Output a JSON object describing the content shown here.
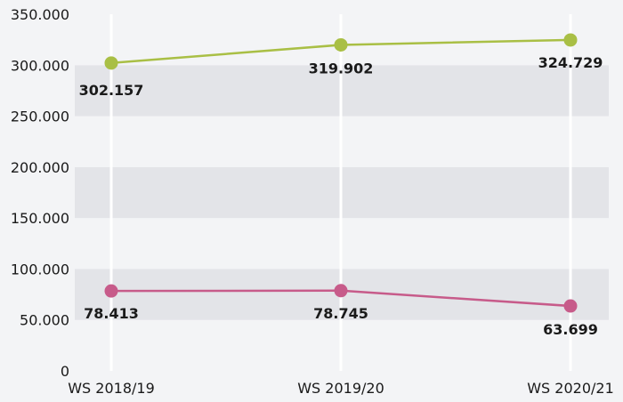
{
  "chart_data": {
    "type": "line",
    "categories": [
      "WS 2018/19",
      "WS 2019/20",
      "WS 2020/21"
    ],
    "series": [
      {
        "values": [
          302157,
          319902,
          324729
        ],
        "labels": [
          "302.157",
          "319.902",
          "324.729"
        ],
        "color": "#a9bf45"
      },
      {
        "values": [
          78413,
          78745,
          63699
        ],
        "labels": [
          "78.413",
          "78.745",
          "63.699"
        ],
        "color": "#c75b8a"
      }
    ],
    "yticks": [
      "0",
      "50.000",
      "100.000",
      "150.000",
      "200.000",
      "250.000",
      "300.000",
      "350.000"
    ],
    "ylim": [
      0,
      350000
    ],
    "grid": "horizontal bands"
  }
}
